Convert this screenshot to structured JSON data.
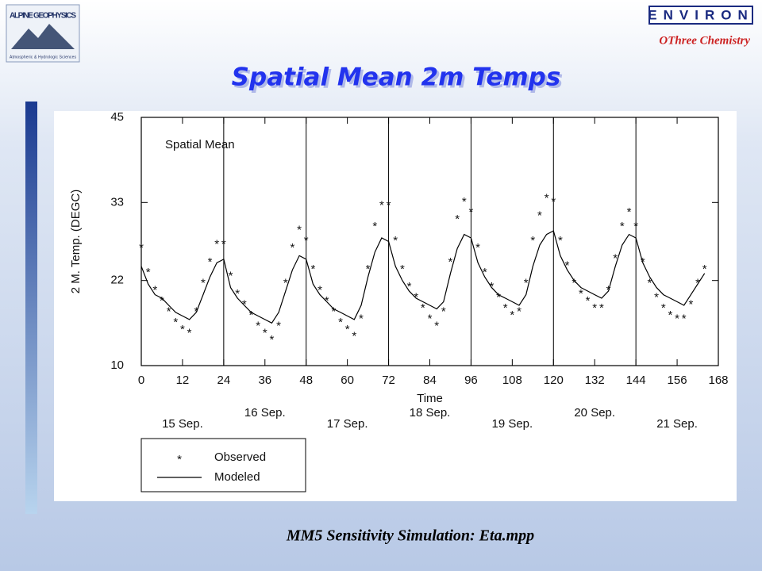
{
  "header": {
    "left_logo": "ALPINE GEOPHYSICS",
    "left_logo_sub": "Atmospheric & Hydrologic Sciences",
    "right_logo": "ENVIRON",
    "right_sub": "OThree Chemistry"
  },
  "slide_title": "Spatial Mean 2m Temps",
  "footer": "MM5 Sensitivity Simulation:  Eta.mpp",
  "chart_data": {
    "type": "line",
    "title": "Spatial Mean",
    "xlabel": "Time",
    "ylabel": "2 M. Temp. (DEGC)",
    "xlim": [
      0,
      168
    ],
    "xticks": [
      0,
      12,
      24,
      36,
      48,
      60,
      72,
      84,
      96,
      108,
      120,
      132,
      144,
      156,
      168
    ],
    "ylim": [
      10,
      45
    ],
    "yticks": [
      10,
      22,
      33,
      45
    ],
    "vlines": [
      24,
      48,
      72,
      96,
      120,
      144
    ],
    "day_labels": [
      "15 Sep.",
      "16 Sep.",
      "17 Sep.",
      "18 Sep.",
      "19 Sep.",
      "20 Sep.",
      "21 Sep."
    ],
    "x": [
      0,
      2,
      4,
      6,
      8,
      10,
      12,
      14,
      16,
      18,
      20,
      22,
      24,
      26,
      28,
      30,
      32,
      34,
      36,
      38,
      40,
      42,
      44,
      46,
      48,
      50,
      52,
      54,
      56,
      58,
      60,
      62,
      64,
      66,
      68,
      70,
      72,
      74,
      76,
      78,
      80,
      82,
      84,
      86,
      88,
      90,
      92,
      94,
      96,
      98,
      100,
      102,
      104,
      106,
      108,
      110,
      112,
      114,
      116,
      118,
      120,
      122,
      124,
      126,
      128,
      130,
      132,
      134,
      136,
      138,
      140,
      142,
      144,
      146,
      148,
      150,
      152,
      154,
      156,
      158,
      160,
      162,
      164
    ],
    "series": [
      {
        "name": "Observed",
        "marker": "*",
        "color": "#000000",
        "values": [
          27,
          23.5,
          21,
          19.5,
          18,
          16.5,
          15.5,
          15,
          18,
          22,
          25,
          27.5,
          27.5,
          23,
          20.5,
          19,
          17.5,
          16,
          15,
          14,
          16,
          22,
          27,
          29.5,
          28,
          24,
          21,
          19.5,
          18,
          16.5,
          15.5,
          14.5,
          17,
          24,
          30,
          33,
          33,
          28,
          24,
          21.5,
          20,
          18.5,
          17,
          16,
          18,
          25,
          31,
          33.5,
          32,
          27,
          23.5,
          21.5,
          20,
          18.5,
          17.5,
          18,
          22,
          28,
          31.5,
          34,
          33.5,
          28,
          24.5,
          22,
          20.5,
          19.5,
          18.5,
          18.5,
          21,
          25.5,
          30,
          32,
          30,
          25,
          22,
          20,
          18.5,
          17.5,
          17,
          17,
          19,
          22,
          24
        ]
      },
      {
        "name": "Modeled",
        "color": "#000000",
        "values": [
          24,
          21.5,
          20,
          19.5,
          18.5,
          17.5,
          17,
          16.5,
          17.5,
          20,
          22.5,
          24.5,
          25,
          21,
          19.5,
          18.5,
          17.5,
          17,
          16.5,
          16,
          17.5,
          20.5,
          23.5,
          25.5,
          25,
          21.5,
          20,
          19,
          18,
          17.5,
          17,
          16.5,
          18.5,
          22.5,
          26,
          28,
          27.5,
          24,
          22,
          20.5,
          19.5,
          19,
          18.5,
          18,
          19,
          23,
          26.5,
          28.5,
          28,
          24.5,
          22.5,
          21,
          20,
          19.5,
          19,
          18.5,
          20,
          24,
          27,
          28.5,
          29,
          25.5,
          23.5,
          22,
          21,
          20.5,
          20,
          19.5,
          20.5,
          24,
          27,
          28.5,
          28,
          24.5,
          22.5,
          21,
          20,
          19.5,
          19,
          18.5,
          20,
          21.5,
          23
        ]
      }
    ]
  }
}
